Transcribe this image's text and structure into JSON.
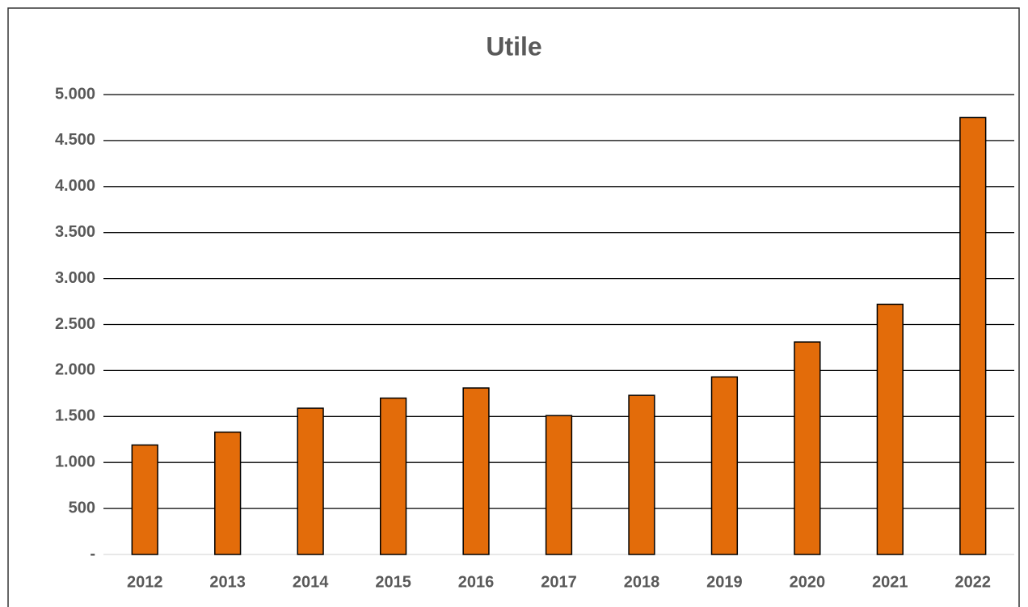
{
  "chart_data": {
    "type": "bar",
    "title": "Utile",
    "categories": [
      "2012",
      "2013",
      "2014",
      "2015",
      "2016",
      "2017",
      "2018",
      "2019",
      "2020",
      "2021",
      "2022"
    ],
    "values": [
      1190,
      1330,
      1590,
      1700,
      1810,
      1510,
      1730,
      1930,
      2310,
      2720,
      4750
    ],
    "color": "#e36c0a",
    "ylim": [
      0,
      5000
    ],
    "yticks": [
      {
        "value": 0,
        "label": "-"
      },
      500,
      {
        "value": 1000,
        "label": "1.000"
      },
      {
        "value": 1500,
        "label": "1.500"
      },
      {
        "value": 2000,
        "label": "2.000"
      },
      {
        "value": 2500,
        "label": "2.500"
      },
      {
        "value": 3000,
        "label": "3.000"
      },
      {
        "value": 3500,
        "label": "3.500"
      },
      {
        "value": 4000,
        "label": "4.000"
      },
      {
        "value": 4500,
        "label": "4.500"
      },
      {
        "value": 5000,
        "label": "5.000"
      }
    ],
    "grid": true
  }
}
